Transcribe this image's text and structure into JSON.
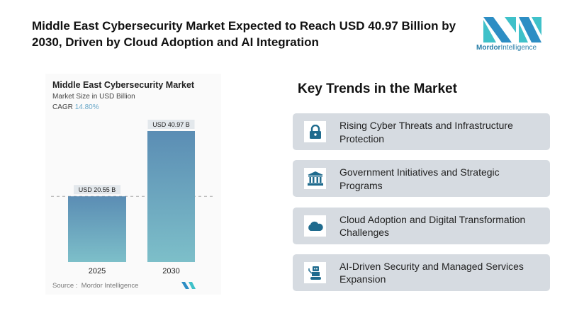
{
  "header": {
    "title": "Middle East Cybersecurity Market Expected to Reach USD 40.97 Billion by 2030, Driven by Cloud Adoption and AI Integration"
  },
  "logo": {
    "name_bold": "Mordor",
    "name_rest": "Intelligence",
    "colors": [
      "#2d8ec4",
      "#3fc1c9"
    ]
  },
  "chart_data": {
    "type": "bar",
    "title": "Middle East Cybersecurity Market",
    "subtitle": "Market Size in USD Billion",
    "cagr_label": "CAGR",
    "cagr_value": "14.80%",
    "categories": [
      "2025",
      "2030"
    ],
    "values": [
      20.55,
      40.97
    ],
    "data_labels": [
      "USD 20.55 B",
      "USD 40.97 B"
    ],
    "ylim": [
      0,
      40.97
    ],
    "grid": false,
    "bar_gradient": [
      "#5b8db4",
      "#7dbfc9"
    ],
    "source": "Source :  Mordor Intelligence"
  },
  "trends": {
    "title": "Key Trends in the Market",
    "items": [
      {
        "label": "Rising Cyber Threats and Infrastructure Protection",
        "icon": "lock-icon"
      },
      {
        "label": "Government Initiatives and Strategic Programs",
        "icon": "government-building-icon"
      },
      {
        "label": "Cloud Adoption and Digital Transformation Challenges",
        "icon": "cloud-icon"
      },
      {
        "label": "AI-Driven Security and Managed Services Expansion",
        "icon": "robot-icon"
      }
    ]
  },
  "colors": {
    "icon": "#1f6b8e",
    "card": "#d6dbe1"
  }
}
